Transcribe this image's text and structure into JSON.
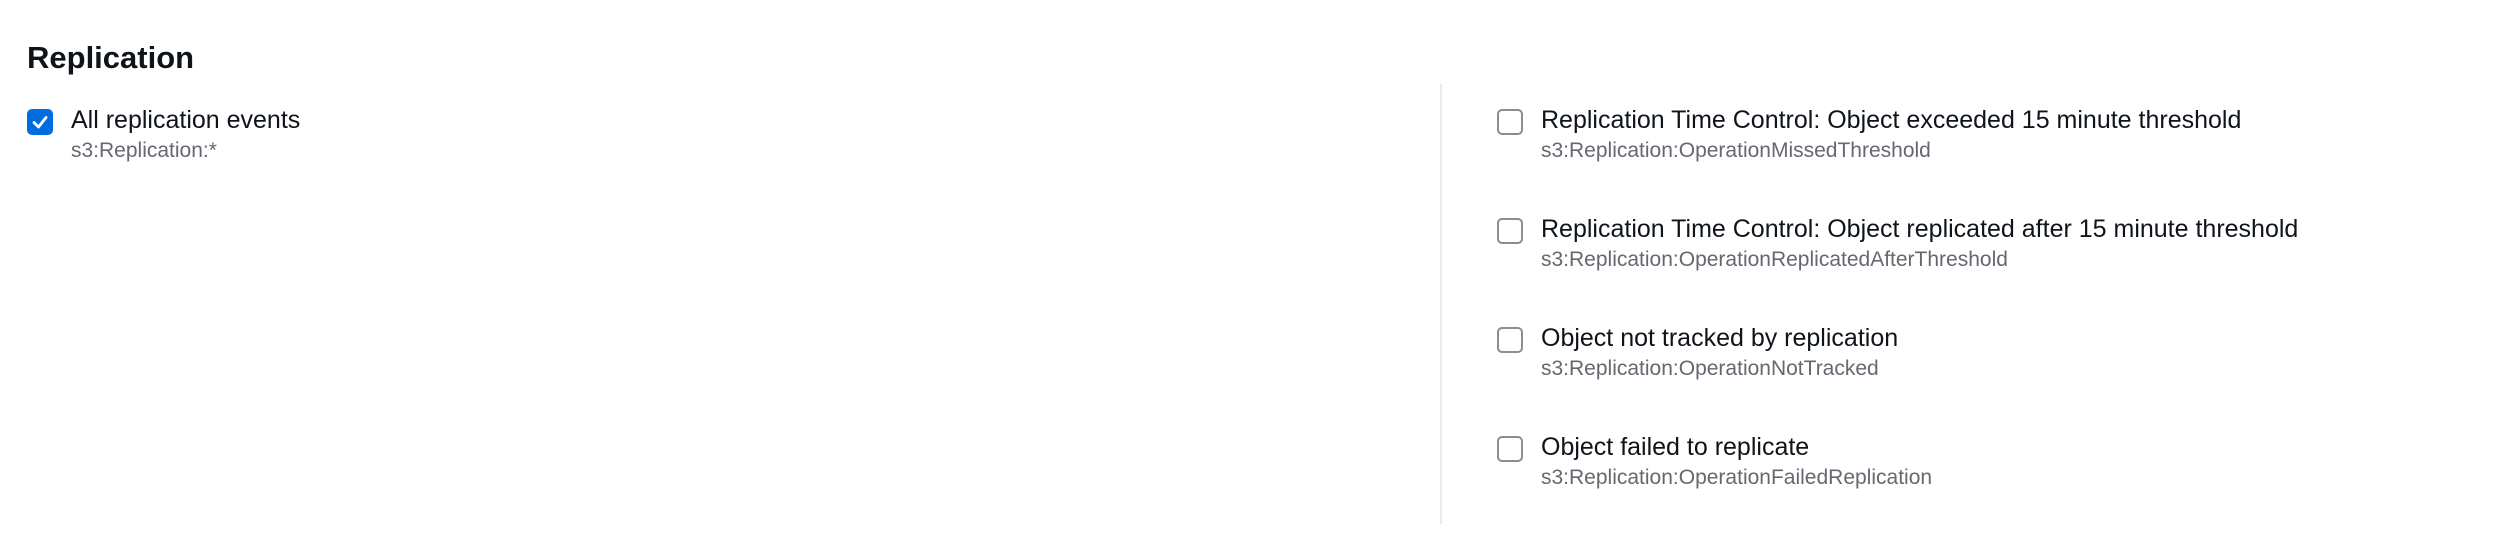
{
  "section": {
    "title": "Replication"
  },
  "left_options": [
    {
      "label": "All replication events",
      "event": "s3:Replication:*",
      "checked": true
    }
  ],
  "right_options": [
    {
      "label": "Replication Time Control: Object exceeded 15 minute threshold",
      "event": "s3:Replication:OperationMissedThreshold",
      "checked": false
    },
    {
      "label": "Replication Time Control: Object replicated after 15 minute threshold",
      "event": "s3:Replication:OperationReplicatedAfterThreshold",
      "checked": false
    },
    {
      "label": "Object not tracked by replication",
      "event": "s3:Replication:OperationNotTracked",
      "checked": false
    },
    {
      "label": "Object failed to replicate",
      "event": "s3:Replication:OperationFailedReplication",
      "checked": false
    }
  ],
  "colors": {
    "accent": "#006ce0",
    "text": "#0f141a",
    "secondary_text": "#656871",
    "divider": "#e9ebed",
    "checkbox_border": "#8c8c94"
  },
  "icons": {
    "checked": "check-icon"
  }
}
